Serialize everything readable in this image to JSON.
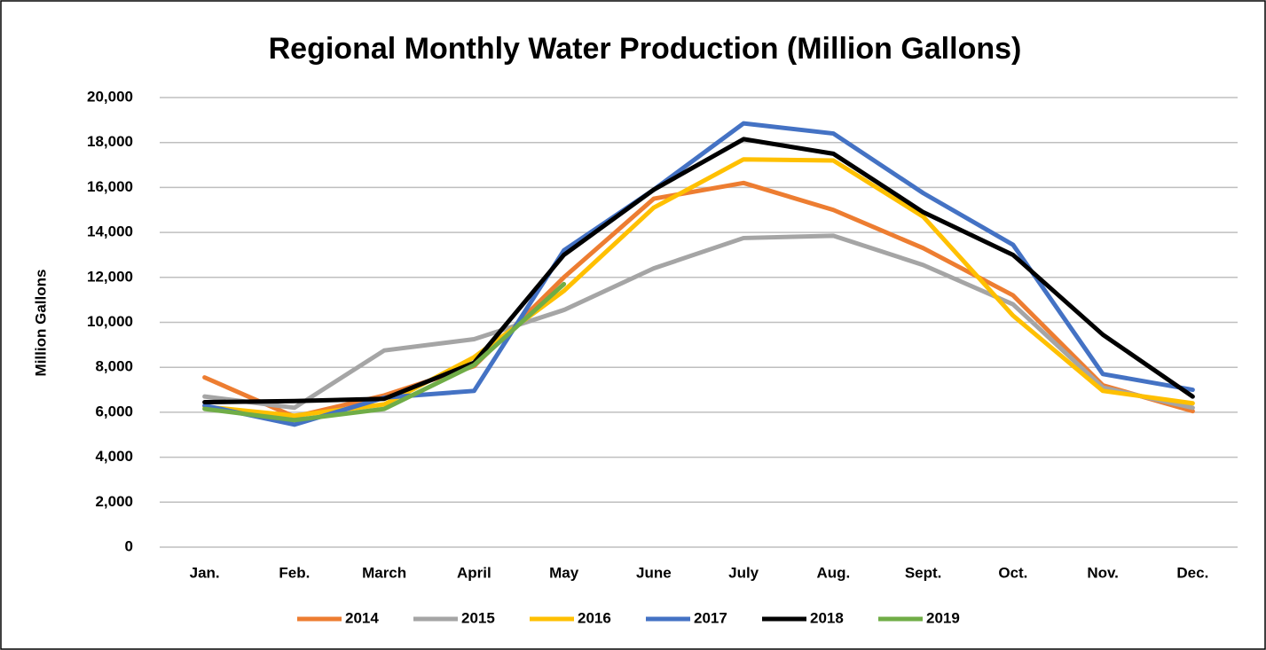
{
  "chart_data": {
    "type": "line",
    "title": "Regional Monthly Water Production (Million Gallons)",
    "y_label": "Million Gallons",
    "categories": [
      "Jan.",
      "Feb.",
      "March",
      "April",
      "May",
      "June",
      "July",
      "Aug.",
      "Sept.",
      "Oct.",
      "Nov.",
      "Dec."
    ],
    "series": [
      {
        "name": "2014",
        "color": "#ed7d31",
        "values": [
          7550,
          5800,
          6750,
          8050,
          12000,
          15500,
          16200,
          15000,
          13300,
          11200,
          7200,
          6050
        ]
      },
      {
        "name": "2015",
        "color": "#a5a5a5",
        "values": [
          6700,
          6200,
          8750,
          9250,
          10550,
          12400,
          13750,
          13850,
          12550,
          10800,
          7100,
          6200
        ]
      },
      {
        "name": "2016",
        "color": "#ffc000",
        "values": [
          6250,
          5850,
          6350,
          8450,
          11400,
          15100,
          17250,
          17200,
          14700,
          10300,
          6950,
          6400
        ]
      },
      {
        "name": "2017",
        "color": "#4472c4",
        "values": [
          6300,
          5450,
          6650,
          6950,
          13200,
          15900,
          18850,
          18400,
          15750,
          13450,
          7700,
          7000
        ]
      },
      {
        "name": "2018",
        "color": "#000000",
        "values": [
          6450,
          6500,
          6600,
          8200,
          13000,
          15900,
          18150,
          17500,
          14900,
          13000,
          9450,
          6700
        ]
      },
      {
        "name": "2019",
        "color": "#70ad47",
        "values": [
          6150,
          5650,
          6150,
          8100,
          11700,
          null,
          null,
          null,
          null,
          null,
          null,
          null
        ]
      }
    ],
    "ylim": [
      0,
      20000
    ],
    "yticks": [
      0,
      {
        "value": 2000,
        "label": "2,000"
      },
      {
        "value": 4000,
        "label": "4,000"
      },
      {
        "value": 6000,
        "label": "6,000"
      },
      {
        "value": 8000,
        "label": "8,000"
      },
      {
        "value": 10000,
        "label": "10,000"
      },
      {
        "value": 12000,
        "label": "12,000"
      },
      {
        "value": 14000,
        "label": "14,000"
      },
      {
        "value": 16000,
        "label": "16,000"
      },
      {
        "value": 18000,
        "label": "18,000"
      },
      {
        "value": 20000,
        "label": "20,000"
      }
    ],
    "grid": true,
    "legend": "bottom"
  }
}
